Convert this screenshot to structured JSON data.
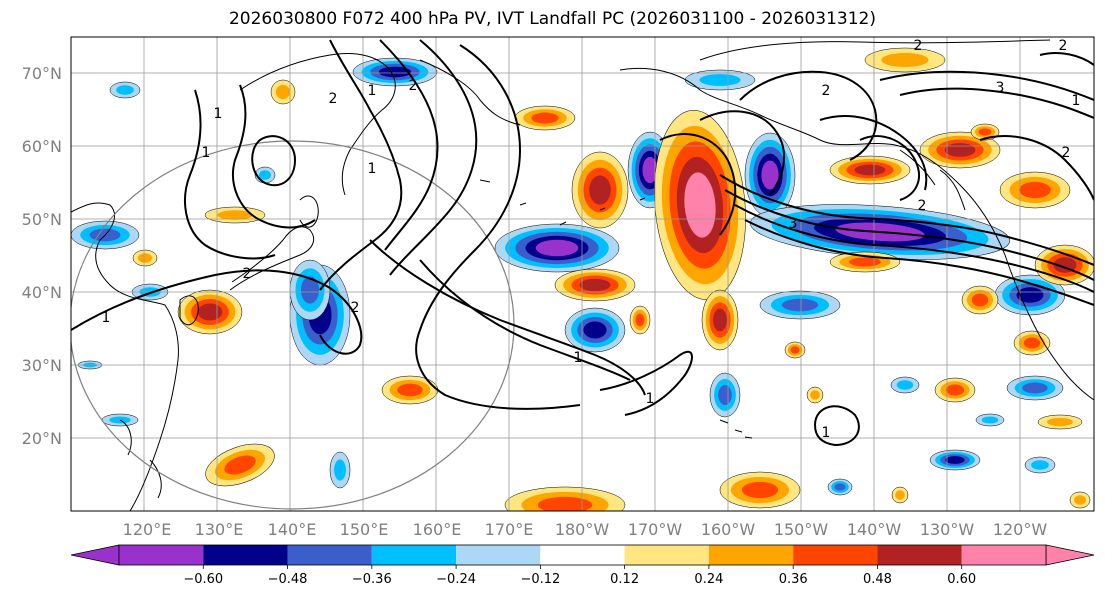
{
  "title": "2026030800 F072 400 hPa PV, IVT Landfall PC (2026031100 - 2026031312)",
  "map": {
    "latitude_labels": [
      "70°N",
      "60°N",
      "50°N",
      "40°N",
      "30°N",
      "20°N"
    ],
    "longitude_labels": [
      "120°E",
      "130°E",
      "140°E",
      "150°E",
      "160°E",
      "170°E",
      "180°W",
      "170°W",
      "160°W",
      "150°W",
      "140°W",
      "130°W",
      "120°W"
    ],
    "contour_labels": [
      "1",
      "2",
      "1",
      "2",
      "1",
      "1",
      "2",
      "1",
      "2",
      "1",
      "2",
      "3",
      "2",
      "1",
      "2",
      "3",
      "2",
      "2",
      "1",
      "1"
    ],
    "colors": {
      "neg_060": "#9932cc",
      "neg_048": "#00008b",
      "neg_036": "#3a5fcd",
      "neg_024": "#00bfff",
      "neg_012": "#add8f5",
      "pos_012": "#ffe680",
      "pos_024": "#ffa500",
      "pos_036": "#ff4500",
      "pos_048": "#b22222",
      "pos_060": "#ff82ab"
    }
  },
  "colorbar": {
    "ticks": [
      "−0.60",
      "−0.48",
      "−0.36",
      "−0.24",
      "−0.12",
      "0.12",
      "0.24",
      "0.36",
      "0.48",
      "0.60"
    ],
    "colors": [
      "#9932cc",
      "#00008b",
      "#3a5fcd",
      "#00bfff",
      "#add8f5",
      "#ffffff",
      "#ffe680",
      "#ffa500",
      "#ff4500",
      "#b22222",
      "#ff82ab"
    ]
  }
}
